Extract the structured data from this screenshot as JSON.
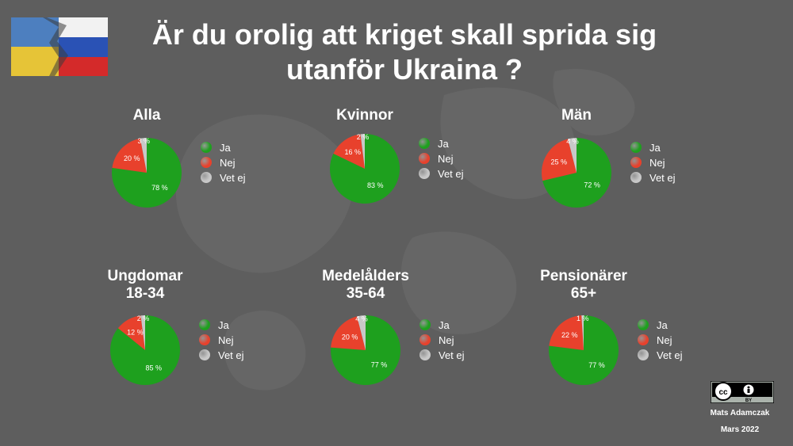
{
  "title": {
    "line1": "Är du orolig att kriget skall sprida sig",
    "line2": "utanför Ukraina ?"
  },
  "legend": [
    {
      "label": "Ja",
      "color": "#1ea01e"
    },
    {
      "label": "Nej",
      "color": "#e8412c"
    },
    {
      "label": "Vet ej",
      "color": "#c8c8c8"
    }
  ],
  "chart_data": [
    {
      "type": "pie",
      "title": "Alla",
      "subtitle": "",
      "categories": [
        "Ja",
        "Nej",
        "Vet ej"
      ],
      "values": [
        78,
        20,
        3
      ],
      "labels": [
        "78 %",
        "20 %",
        "3 %"
      ]
    },
    {
      "type": "pie",
      "title": "Kvinnor",
      "subtitle": "",
      "categories": [
        "Ja",
        "Nej",
        "Vet ej"
      ],
      "values": [
        83,
        16,
        2
      ],
      "labels": [
        "83 %",
        "16 %",
        "2 %"
      ]
    },
    {
      "type": "pie",
      "title": "Män",
      "subtitle": "",
      "categories": [
        "Ja",
        "Nej",
        "Vet ej"
      ],
      "values": [
        72,
        25,
        4
      ],
      "labels": [
        "72 %",
        "25 %",
        "4 %"
      ]
    },
    {
      "type": "pie",
      "title": "Ungdomar",
      "subtitle": "18-34",
      "categories": [
        "Ja",
        "Nej",
        "Vet ej"
      ],
      "values": [
        85,
        12,
        2
      ],
      "labels": [
        "85 %",
        "12 %",
        "2 %"
      ]
    },
    {
      "type": "pie",
      "title": "Medelålders",
      "subtitle": "35-64",
      "categories": [
        "Ja",
        "Nej",
        "Vet ej"
      ],
      "values": [
        77,
        20,
        4
      ],
      "labels": [
        "77 %",
        "20 %",
        "4 %"
      ]
    },
    {
      "type": "pie",
      "title": "Pensionärer",
      "subtitle": "65+",
      "categories": [
        "Ja",
        "Nej",
        "Vet ej"
      ],
      "values": [
        77,
        22,
        1
      ],
      "labels": [
        "77 %",
        "22 %",
        "1 %"
      ]
    }
  ],
  "footer": {
    "license_badge": "BY",
    "author": "Mats Adamczak",
    "date": "Mars 2022"
  }
}
